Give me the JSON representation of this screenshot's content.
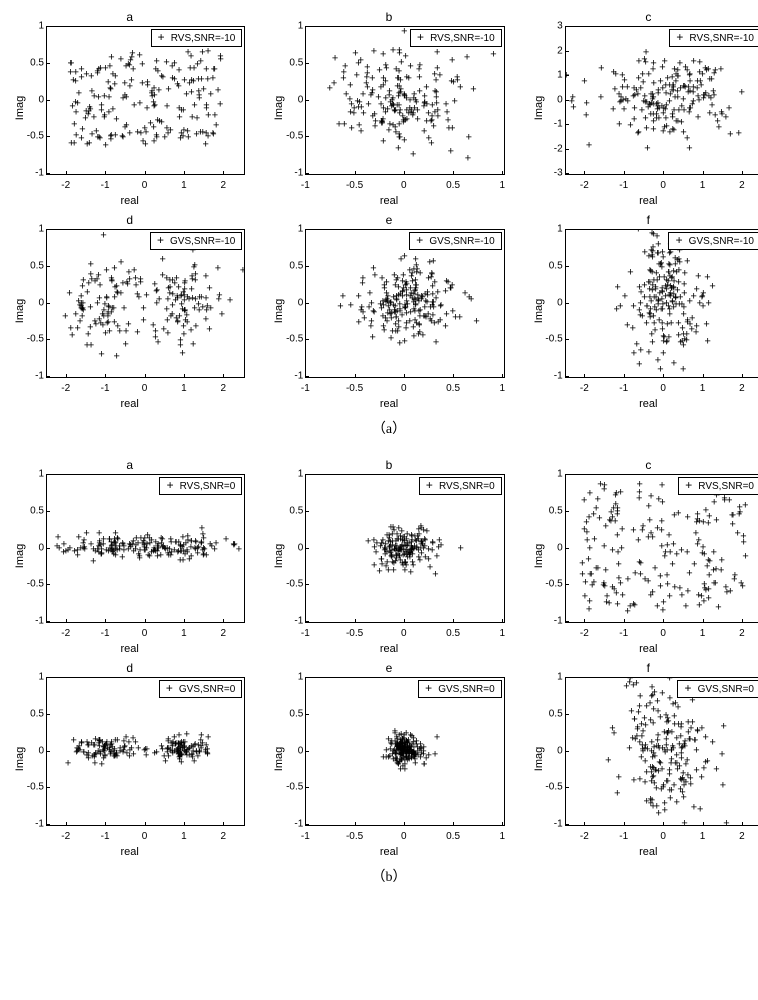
{
  "colors": {
    "marker": "#000000",
    "border": "#000000",
    "bg": "#ffffff"
  },
  "marker_glyph": "+",
  "group_a_label": "（a）",
  "group_b_label": "（b）",
  "axis_xlabel": "real",
  "axis_ylabel": "Imag",
  "groups": [
    {
      "id": "a",
      "subplots": [
        {
          "title": "a",
          "legend": "RVS,SNR=-10",
          "xlim": [
            -2.5,
            2.5
          ],
          "ylim": [
            -1,
            1
          ],
          "xticks": [
            -2,
            -1,
            0,
            1,
            2
          ],
          "yticks": [
            -1,
            -0.5,
            0,
            0.5,
            1
          ],
          "n": 190,
          "clusters": [
            [
              0,
              0,
              1.2,
              0.4
            ]
          ],
          "uniform": true
        },
        {
          "title": "b",
          "legend": "RVS,SNR=-10",
          "xlim": [
            -1,
            1
          ],
          "ylim": [
            -1,
            1
          ],
          "xticks": [
            -1,
            -0.5,
            0,
            0.5,
            1
          ],
          "yticks": [
            -1,
            -0.5,
            0,
            0.5,
            1
          ],
          "n": 190,
          "clusters": [
            [
              0,
              0,
              0.35,
              0.35
            ]
          ],
          "uniform": false
        },
        {
          "title": "c",
          "legend": "RVS,SNR=-10",
          "xlim": [
            -2.5,
            2.5
          ],
          "ylim": [
            -3,
            3
          ],
          "xticks": [
            -2,
            -1,
            0,
            1,
            2
          ],
          "yticks": [
            -3,
            -2,
            -1,
            0,
            1,
            2,
            3
          ],
          "n": 190,
          "clusters": [
            [
              0,
              0,
              0.8,
              0.8
            ]
          ],
          "uniform": false
        },
        {
          "title": "d",
          "legend": "GVS,SNR=-10",
          "xlim": [
            -2.5,
            2.5
          ],
          "ylim": [
            -1,
            1
          ],
          "xticks": [
            -2,
            -1,
            0,
            1,
            2
          ],
          "yticks": [
            -1,
            -0.5,
            0,
            0.5,
            1
          ],
          "n": 190,
          "clusters": [
            [
              -1,
              0,
              0.5,
              0.3
            ],
            [
              1,
              0,
              0.5,
              0.3
            ]
          ],
          "uniform": false
        },
        {
          "title": "e",
          "legend": "GVS,SNR=-10",
          "xlim": [
            -1,
            1
          ],
          "ylim": [
            -1,
            1
          ],
          "xticks": [
            -1,
            -0.5,
            0,
            0.5,
            1
          ],
          "yticks": [
            -1,
            -0.5,
            0,
            0.5,
            1
          ],
          "n": 200,
          "clusters": [
            [
              0,
              0,
              0.25,
              0.25
            ]
          ],
          "uniform": false
        },
        {
          "title": "f",
          "legend": "GVS,SNR=-10",
          "xlim": [
            -2.5,
            2.5
          ],
          "ylim": [
            -1,
            1
          ],
          "xticks": [
            -2,
            -1,
            0,
            1,
            2
          ],
          "yticks": [
            -1,
            -0.5,
            0,
            0.5,
            1
          ],
          "n": 200,
          "clusters": [
            [
              0,
              0,
              0.5,
              0.45
            ]
          ],
          "uniform": false
        }
      ]
    },
    {
      "id": "b",
      "subplots": [
        {
          "title": "a",
          "legend": "RVS,SNR=0",
          "xlim": [
            -2.5,
            2.5
          ],
          "ylim": [
            -1,
            1
          ],
          "xticks": [
            -2,
            -1,
            0,
            1,
            2
          ],
          "yticks": [
            -1,
            -0.5,
            0,
            0.5,
            1
          ],
          "n": 190,
          "clusters": [
            [
              0,
              0,
              1.2,
              0.08
            ]
          ],
          "uniform": false
        },
        {
          "title": "b",
          "legend": "RVS,SNR=0",
          "xlim": [
            -1,
            1
          ],
          "ylim": [
            -1,
            1
          ],
          "xticks": [
            -1,
            -0.5,
            0,
            0.5,
            1
          ],
          "yticks": [
            -1,
            -0.5,
            0,
            0.5,
            1
          ],
          "n": 170,
          "clusters": [
            [
              0,
              0,
              0.15,
              0.12
            ]
          ],
          "uniform": false
        },
        {
          "title": "c",
          "legend": "RVS,SNR=0",
          "xlim": [
            -2.5,
            2.5
          ],
          "ylim": [
            -1,
            1
          ],
          "xticks": [
            -2,
            -1,
            0,
            1,
            2
          ],
          "yticks": [
            -1,
            -0.5,
            0,
            0.5,
            1
          ],
          "n": 190,
          "clusters": [
            [
              0,
              0,
              1.3,
              0.55
            ]
          ],
          "uniform": true
        },
        {
          "title": "d",
          "legend": "GVS,SNR=0",
          "xlim": [
            -2.5,
            2.5
          ],
          "ylim": [
            -1,
            1
          ],
          "xticks": [
            -2,
            -1,
            0,
            1,
            2
          ],
          "yticks": [
            -1,
            -0.5,
            0,
            0.5,
            1
          ],
          "n": 190,
          "clusters": [
            [
              -1,
              0,
              0.4,
              0.08
            ],
            [
              1,
              0,
              0.4,
              0.08
            ]
          ],
          "uniform": false
        },
        {
          "title": "e",
          "legend": "GVS,SNR=0",
          "xlim": [
            -1,
            1
          ],
          "ylim": [
            -1,
            1
          ],
          "xticks": [
            -1,
            -0.5,
            0,
            0.5,
            1
          ],
          "yticks": [
            -1,
            -0.5,
            0,
            0.5,
            1
          ],
          "n": 200,
          "clusters": [
            [
              0,
              0,
              0.1,
              0.1
            ]
          ],
          "uniform": false
        },
        {
          "title": "f",
          "legend": "GVS,SNR=0",
          "xlim": [
            -2.5,
            2.5
          ],
          "ylim": [
            -1,
            1
          ],
          "xticks": [
            -2,
            -1,
            0,
            1,
            2
          ],
          "yticks": [
            -1,
            -0.5,
            0,
            0.5,
            1
          ],
          "n": 200,
          "clusters": [
            [
              0,
              0,
              0.6,
              0.5
            ]
          ],
          "uniform": false
        }
      ]
    }
  ]
}
